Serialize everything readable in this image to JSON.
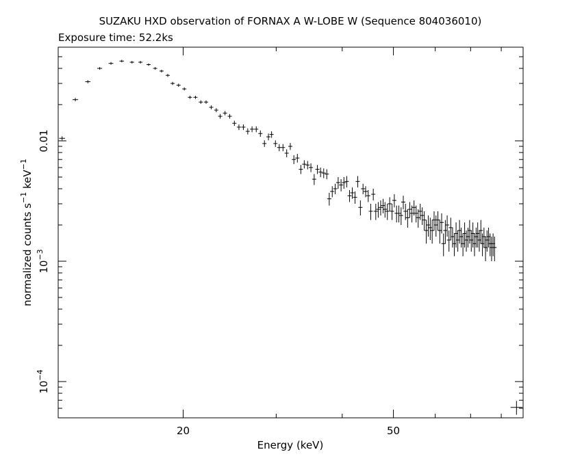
{
  "chart_data": {
    "type": "scatter",
    "title": "SUZAKU HXD observation of FORNAX A W-LOBE W (Sequence 804036010)",
    "subtitle": "Exposure time: 52.2ks",
    "xlabel": "Energy (keV)",
    "ylabel_parts": {
      "base": "normalized counts s",
      "sup1": "−1",
      "mid": " keV",
      "sup2": "−1"
    },
    "x_scale": "log",
    "y_scale": "log",
    "xlim": [
      11.6,
      88
    ],
    "ylim": [
      5e-05,
      0.06
    ],
    "x_ticks": [
      {
        "value": 20,
        "label": "20"
      },
      {
        "value": 50,
        "label": "50"
      }
    ],
    "y_ticks": [
      {
        "value": 0.01,
        "base": "0.01",
        "exp": ""
      },
      {
        "value": 0.001,
        "base": "10",
        "exp": "−3"
      },
      {
        "value": 0.0001,
        "base": "10",
        "exp": "−4"
      }
    ],
    "points": [
      [
        11.8,
        0.0105,
        0.0004,
        0.15
      ],
      [
        12.5,
        0.022,
        0.0007,
        0.15
      ],
      [
        13.2,
        0.031,
        0.0009,
        0.15
      ],
      [
        13.9,
        0.04,
        0.001,
        0.15
      ],
      [
        14.6,
        0.044,
        0.0011,
        0.15
      ],
      [
        15.3,
        0.046,
        0.0011,
        0.15
      ],
      [
        16.0,
        0.045,
        0.0011,
        0.15
      ],
      [
        16.6,
        0.045,
        0.0011,
        0.15
      ],
      [
        17.2,
        0.043,
        0.001,
        0.15
      ],
      [
        17.7,
        0.04,
        0.001,
        0.15
      ],
      [
        18.2,
        0.038,
        0.001,
        0.15
      ],
      [
        18.7,
        0.035,
        0.001,
        0.15
      ],
      [
        19.1,
        0.03,
        0.0009,
        0.15
      ],
      [
        19.6,
        0.029,
        0.0009,
        0.15
      ],
      [
        20.1,
        0.027,
        0.0008,
        0.15
      ],
      [
        20.6,
        0.023,
        0.0007,
        0.15
      ],
      [
        21.1,
        0.023,
        0.0007,
        0.15
      ],
      [
        21.6,
        0.021,
        0.0007,
        0.15
      ],
      [
        22.1,
        0.021,
        0.0007,
        0.15
      ],
      [
        22.6,
        0.019,
        0.0007,
        0.15
      ],
      [
        23.1,
        0.018,
        0.0007,
        0.15
      ],
      [
        23.5,
        0.016,
        0.0007,
        0.15
      ],
      [
        24.0,
        0.017,
        0.0007,
        0.15
      ],
      [
        24.5,
        0.016,
        0.0007,
        0.15
      ],
      [
        25.0,
        0.014,
        0.0007,
        0.15
      ],
      [
        25.5,
        0.013,
        0.0007,
        0.15
      ],
      [
        26.0,
        0.013,
        0.0007,
        0.15
      ],
      [
        26.5,
        0.012,
        0.0007,
        0.15
      ],
      [
        27.0,
        0.0125,
        0.0007,
        0.15
      ],
      [
        27.5,
        0.0125,
        0.0007,
        0.15
      ],
      [
        28.0,
        0.0115,
        0.0007,
        0.15
      ],
      [
        28.5,
        0.0095,
        0.0006,
        0.15
      ],
      [
        29.0,
        0.0108,
        0.0007,
        0.15
      ],
      [
        29.4,
        0.0113,
        0.0007,
        0.15
      ],
      [
        29.9,
        0.0095,
        0.0006,
        0.15
      ],
      [
        30.4,
        0.0088,
        0.0006,
        0.15
      ],
      [
        30.9,
        0.0088,
        0.0006,
        0.15
      ],
      [
        31.4,
        0.0079,
        0.0006,
        0.15
      ],
      [
        31.9,
        0.009,
        0.0006,
        0.15
      ],
      [
        32.4,
        0.007,
        0.0006,
        0.15
      ],
      [
        32.9,
        0.0072,
        0.0006,
        0.15
      ],
      [
        33.4,
        0.0058,
        0.0005,
        0.15
      ],
      [
        33.9,
        0.0064,
        0.0005,
        0.15
      ],
      [
        34.4,
        0.0063,
        0.0005,
        0.15
      ],
      [
        34.9,
        0.006,
        0.0005,
        0.15
      ],
      [
        35.4,
        0.0048,
        0.0005,
        0.15
      ],
      [
        35.9,
        0.0058,
        0.0005,
        0.15
      ],
      [
        36.4,
        0.0055,
        0.0005,
        0.15
      ],
      [
        36.9,
        0.0054,
        0.0005,
        0.15
      ],
      [
        37.4,
        0.0053,
        0.0005,
        0.15
      ],
      [
        37.8,
        0.0033,
        0.0004,
        0.15
      ],
      [
        38.3,
        0.0038,
        0.0004,
        0.15
      ],
      [
        38.8,
        0.004,
        0.0004,
        0.15
      ],
      [
        39.3,
        0.0045,
        0.0005,
        0.15
      ],
      [
        39.8,
        0.0043,
        0.0005,
        0.15
      ],
      [
        40.3,
        0.0045,
        0.0005,
        0.15
      ],
      [
        40.8,
        0.0046,
        0.0005,
        0.15
      ],
      [
        41.3,
        0.0035,
        0.0004,
        0.15
      ],
      [
        41.8,
        0.0037,
        0.0004,
        0.15
      ],
      [
        42.3,
        0.0034,
        0.0004,
        0.15
      ],
      [
        42.8,
        0.0046,
        0.0005,
        0.15
      ],
      [
        43.3,
        0.0028,
        0.0004,
        0.15
      ],
      [
        43.8,
        0.004,
        0.0004,
        0.15
      ],
      [
        44.3,
        0.0038,
        0.0004,
        0.15
      ],
      [
        44.8,
        0.0035,
        0.0004,
        0.15
      ],
      [
        45.3,
        0.0026,
        0.0004,
        0.15
      ],
      [
        45.8,
        0.0036,
        0.0004,
        0.15
      ],
      [
        46.3,
        0.0026,
        0.0004,
        0.15
      ],
      [
        46.8,
        0.0027,
        0.0004,
        0.15
      ],
      [
        47.3,
        0.0028,
        0.0004,
        0.15
      ],
      [
        47.8,
        0.0029,
        0.0004,
        0.15
      ],
      [
        48.2,
        0.0027,
        0.0004,
        0.15
      ],
      [
        48.7,
        0.0026,
        0.0004,
        0.15
      ],
      [
        49.2,
        0.003,
        0.0004,
        0.15
      ],
      [
        49.7,
        0.0026,
        0.0004,
        0.15
      ],
      [
        50.2,
        0.0032,
        0.0004,
        0.15
      ],
      [
        50.7,
        0.0025,
        0.0004,
        0.15
      ],
      [
        51.2,
        0.0025,
        0.0004,
        0.15
      ],
      [
        51.7,
        0.0024,
        0.0004,
        0.15
      ],
      [
        52.2,
        0.0031,
        0.0004,
        0.15
      ],
      [
        52.7,
        0.0026,
        0.0004,
        0.15
      ],
      [
        53.2,
        0.0023,
        0.0004,
        0.15
      ],
      [
        53.7,
        0.0027,
        0.0004,
        0.15
      ],
      [
        54.2,
        0.0025,
        0.0004,
        0.15
      ],
      [
        54.7,
        0.0028,
        0.0004,
        0.15
      ],
      [
        55.2,
        0.0025,
        0.0004,
        0.15
      ],
      [
        55.7,
        0.0023,
        0.0004,
        0.15
      ],
      [
        56.2,
        0.0026,
        0.0004,
        0.15
      ],
      [
        56.7,
        0.0024,
        0.0004,
        0.15
      ],
      [
        57.2,
        0.0022,
        0.0004,
        0.15
      ],
      [
        57.7,
        0.0018,
        0.0004,
        0.15
      ],
      [
        58.2,
        0.002,
        0.0004,
        0.15
      ],
      [
        58.7,
        0.0019,
        0.0004,
        0.15
      ],
      [
        59.2,
        0.0018,
        0.0004,
        0.15
      ],
      [
        59.7,
        0.0022,
        0.0004,
        0.15
      ],
      [
        60.2,
        0.002,
        0.0004,
        0.15
      ],
      [
        60.7,
        0.0022,
        0.0004,
        0.15
      ],
      [
        61.2,
        0.0018,
        0.0004,
        0.15
      ],
      [
        61.7,
        0.0021,
        0.0004,
        0.15
      ],
      [
        62.2,
        0.0014,
        0.0003,
        0.15
      ],
      [
        62.7,
        0.0018,
        0.0004,
        0.15
      ],
      [
        63.2,
        0.002,
        0.0004,
        0.15
      ],
      [
        63.7,
        0.0015,
        0.0003,
        0.15
      ],
      [
        64.2,
        0.0019,
        0.0004,
        0.15
      ],
      [
        64.7,
        0.0016,
        0.0003,
        0.15
      ],
      [
        65.2,
        0.0014,
        0.0003,
        0.15
      ],
      [
        65.7,
        0.0017,
        0.0004,
        0.15
      ],
      [
        66.2,
        0.0015,
        0.0003,
        0.15
      ],
      [
        66.7,
        0.0018,
        0.0004,
        0.15
      ],
      [
        67.2,
        0.0016,
        0.0003,
        0.15
      ],
      [
        67.7,
        0.0014,
        0.0003,
        0.15
      ],
      [
        68.2,
        0.0017,
        0.0004,
        0.15
      ],
      [
        68.7,
        0.0015,
        0.0003,
        0.15
      ],
      [
        69.2,
        0.0016,
        0.0003,
        0.15
      ],
      [
        69.7,
        0.0018,
        0.0004,
        0.15
      ],
      [
        70.2,
        0.0015,
        0.0003,
        0.15
      ],
      [
        70.7,
        0.0017,
        0.0004,
        0.15
      ],
      [
        71.2,
        0.0014,
        0.0003,
        0.15
      ],
      [
        71.7,
        0.0016,
        0.0003,
        0.15
      ],
      [
        72.2,
        0.0017,
        0.0004,
        0.15
      ],
      [
        72.7,
        0.0015,
        0.0003,
        0.15
      ],
      [
        73.2,
        0.0018,
        0.0004,
        0.15
      ],
      [
        73.7,
        0.0014,
        0.0003,
        0.15
      ],
      [
        74.2,
        0.0016,
        0.0003,
        0.15
      ],
      [
        74.7,
        0.0013,
        0.0003,
        0.15
      ],
      [
        75.2,
        0.0015,
        0.0003,
        0.15
      ],
      [
        75.7,
        0.0016,
        0.0003,
        0.15
      ],
      [
        76.2,
        0.0014,
        0.0003,
        0.15
      ],
      [
        76.7,
        0.0013,
        0.0003,
        0.15
      ],
      [
        77.2,
        0.0014,
        0.0003,
        0.15
      ],
      [
        77.7,
        0.0013,
        0.0003,
        0.15
      ]
    ],
    "extra_marks": [
      [
        85.5,
        6.1e-05,
        8e-06,
        2.2
      ]
    ],
    "grid": false,
    "legend": "none",
    "color": "#000000"
  }
}
